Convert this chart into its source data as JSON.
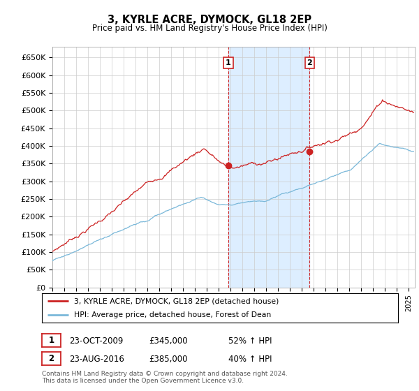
{
  "title": "3, KYRLE ACRE, DYMOCK, GL18 2EP",
  "subtitle": "Price paid vs. HM Land Registry's House Price Index (HPI)",
  "ylabel_ticks": [
    "£0",
    "£50K",
    "£100K",
    "£150K",
    "£200K",
    "£250K",
    "£300K",
    "£350K",
    "£400K",
    "£450K",
    "£500K",
    "£550K",
    "£600K",
    "£650K"
  ],
  "ytick_values": [
    0,
    50000,
    100000,
    150000,
    200000,
    250000,
    300000,
    350000,
    400000,
    450000,
    500000,
    550000,
    600000,
    650000
  ],
  "ylim": [
    0,
    680000
  ],
  "xlim_start": 1995.0,
  "xlim_end": 2025.5,
  "sale1_x": 2009.81,
  "sale1_y": 345000,
  "sale1_label": "1",
  "sale1_date": "23-OCT-2009",
  "sale1_price": "£345,000",
  "sale1_hpi": "52% ↑ HPI",
  "sale2_x": 2016.64,
  "sale2_y": 385000,
  "sale2_label": "2",
  "sale2_date": "23-AUG-2016",
  "sale2_price": "£385,000",
  "sale2_hpi": "40% ↑ HPI",
  "hpi_color": "#7ab8d9",
  "price_color": "#cc2222",
  "shade_color": "#ddeeff",
  "background_color": "#ffffff",
  "grid_color": "#cccccc",
  "legend_line1": "3, KYRLE ACRE, DYMOCK, GL18 2EP (detached house)",
  "legend_line2": "HPI: Average price, detached house, Forest of Dean",
  "footnote": "Contains HM Land Registry data © Crown copyright and database right 2024.\nThis data is licensed under the Open Government Licence v3.0.",
  "xtick_years": [
    1995,
    1996,
    1997,
    1998,
    1999,
    2000,
    2001,
    2002,
    2003,
    2004,
    2005,
    2006,
    2007,
    2008,
    2009,
    2010,
    2011,
    2012,
    2013,
    2014,
    2015,
    2016,
    2017,
    2018,
    2019,
    2020,
    2021,
    2022,
    2023,
    2024,
    2025
  ]
}
